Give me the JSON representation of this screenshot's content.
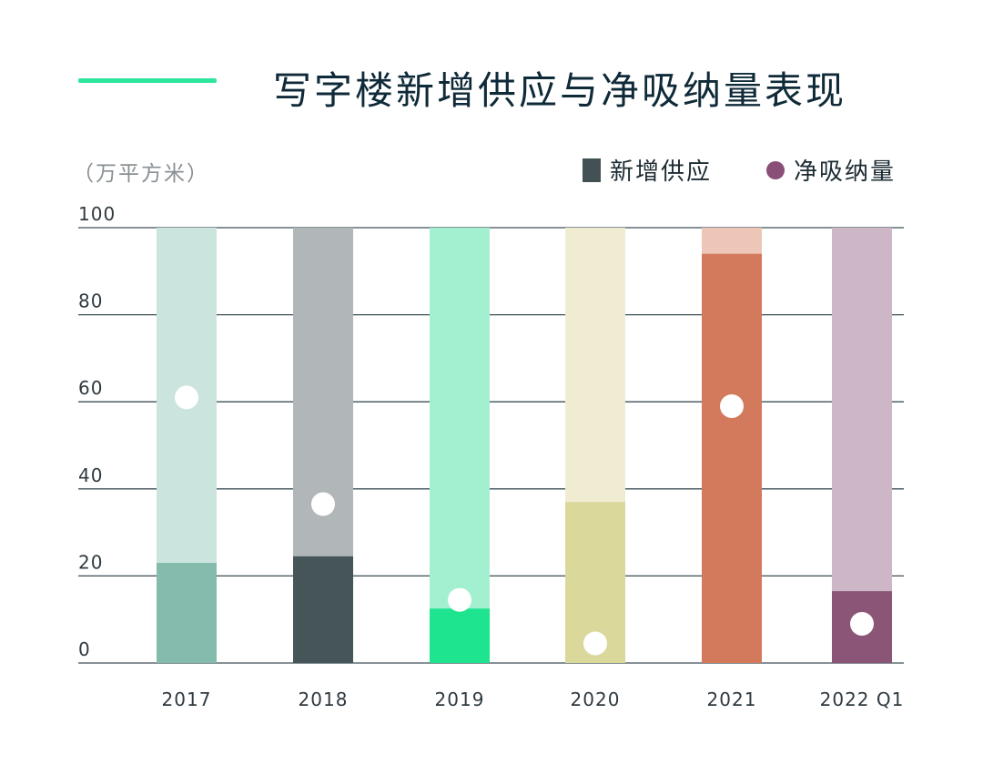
{
  "title": "写字楼新增供应与净吸纳量表现",
  "unit": "（万平方米）",
  "legend": {
    "supply": "新增供应",
    "absorption": "净吸纳量"
  },
  "colors": {
    "accent": "#2ee59d",
    "title": "#0f2a38",
    "grid": "#3d4f57",
    "legend_supply": "#435154",
    "legend_absorption": "#8a4f76"
  },
  "chart_data": {
    "type": "bar",
    "categories": [
      "2017",
      "2018",
      "2019",
      "2020",
      "2021",
      "2022 Q1"
    ],
    "series": [
      {
        "name": "新增供应",
        "values": [
          23,
          24.5,
          12.5,
          37,
          94,
          16.5
        ]
      },
      {
        "name": "净吸纳量",
        "values": [
          61,
          36.5,
          14.5,
          4.5,
          59,
          9
        ]
      }
    ],
    "bar_colors": [
      {
        "supply": "#85bbad",
        "background": "#cbe4de"
      },
      {
        "supply": "#465558",
        "background": "#b1b6b9"
      },
      {
        "supply": "#1ee38f",
        "background": "#a3f0d1"
      },
      {
        "supply": "#dbd89c",
        "background": "#f0ecd2"
      },
      {
        "supply": "#d37a5d",
        "background": "#eec6b7"
      },
      {
        "supply": "#8b5578",
        "background": "#cdb7c6"
      }
    ],
    "yticks": [
      0,
      20,
      40,
      60,
      80,
      100
    ],
    "ylim": [
      0,
      100
    ],
    "ylabel": "（万平方米）",
    "xlabel": "",
    "grid": true,
    "legend_position": "top-right"
  }
}
